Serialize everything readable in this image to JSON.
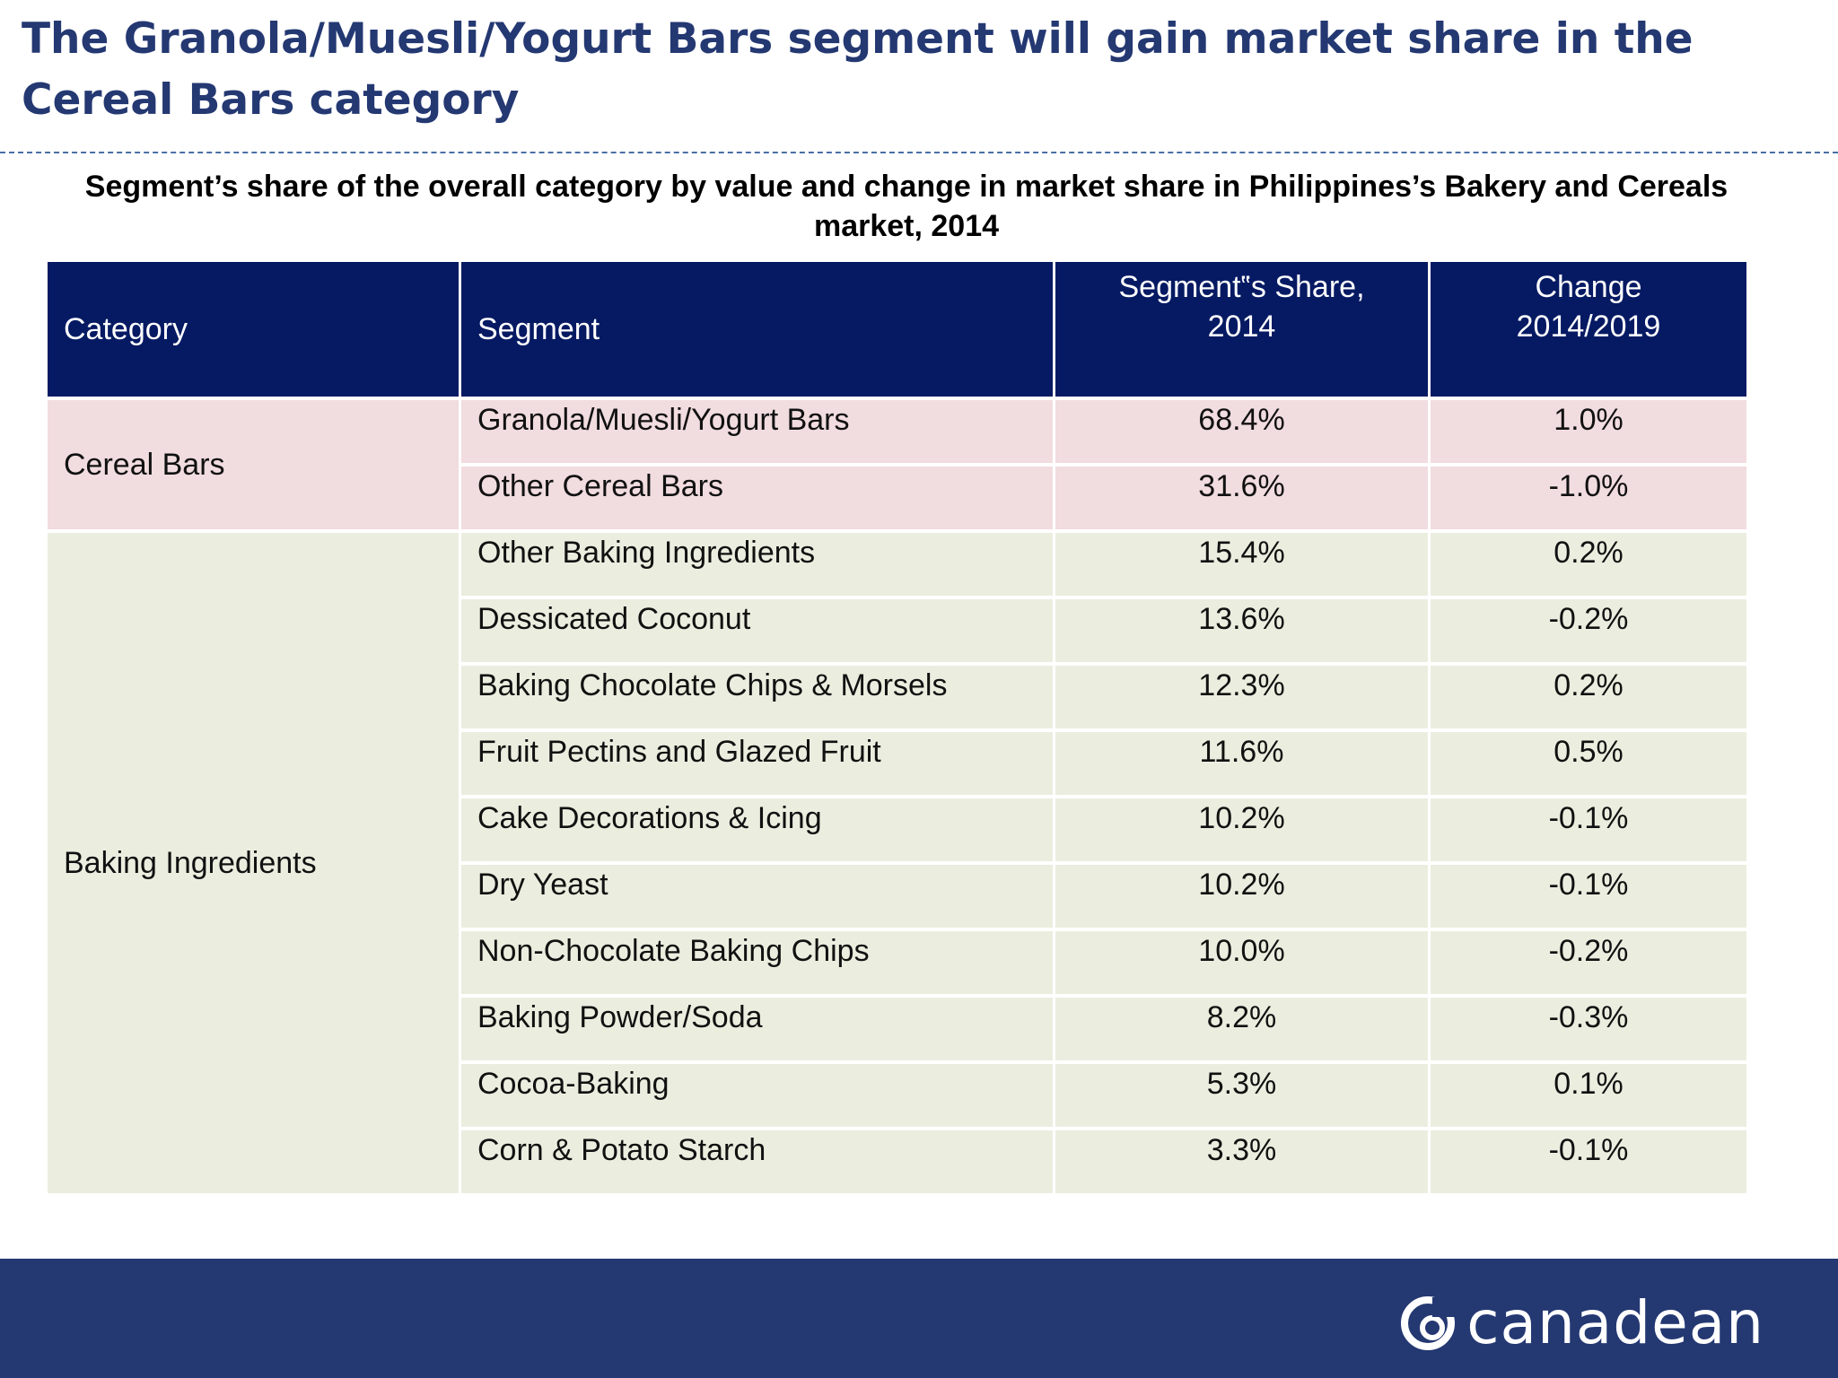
{
  "title": "The Granola/Muesli/Yogurt Bars segment will gain market share in the Cereal Bars category",
  "subtitle": "Segment’s share of the overall category by value and change in market share in Philippines’s Bakery and Cereals market, 2014",
  "table": {
    "headers": {
      "category": "Category",
      "segment": "Segment",
      "share_line1": "Segment‟s Share,",
      "share_line2": "2014",
      "change_line1": "Change",
      "change_line2": "2014/2019"
    },
    "groups": [
      {
        "category": "Cereal Bars",
        "rows": [
          {
            "segment": "Granola/Muesli/Yogurt Bars",
            "share": "68.4%",
            "change": "1.0%"
          },
          {
            "segment": "Other Cereal Bars",
            "share": "31.6%",
            "change": "-1.0%"
          }
        ]
      },
      {
        "category": "Baking Ingredients",
        "rows": [
          {
            "segment": "Other Baking Ingredients",
            "share": "15.4%",
            "change": "0.2%"
          },
          {
            "segment": "Dessicated Coconut",
            "share": "13.6%",
            "change": "-0.2%"
          },
          {
            "segment": "Baking Chocolate Chips & Morsels",
            "share": "12.3%",
            "change": "0.2%"
          },
          {
            "segment": "Fruit Pectins and Glazed Fruit",
            "share": "11.6%",
            "change": "0.5%"
          },
          {
            "segment": "Cake Decorations & Icing",
            "share": "10.2%",
            "change": "-0.1%"
          },
          {
            "segment": "Dry Yeast",
            "share": "10.2%",
            "change": "-0.1%"
          },
          {
            "segment": "Non-Chocolate Baking Chips",
            "share": "10.0%",
            "change": "-0.2%"
          },
          {
            "segment": "Baking Powder/Soda",
            "share": "8.2%",
            "change": "-0.3%"
          },
          {
            "segment": "Cocoa-Baking",
            "share": "5.3%",
            "change": "0.1%"
          },
          {
            "segment": "Corn & Potato Starch",
            "share": "3.3%",
            "change": "-0.1%"
          }
        ]
      }
    ]
  },
  "footer": {
    "logo_text": "canadean",
    "logo_icon": "canadean-swirl-icon"
  },
  "colors": {
    "title": "#243872",
    "header_bg": "#061a63",
    "cereal_row": "#f1dcdf",
    "baking_row": "#ebeedf",
    "footer_bg": "#243872"
  }
}
